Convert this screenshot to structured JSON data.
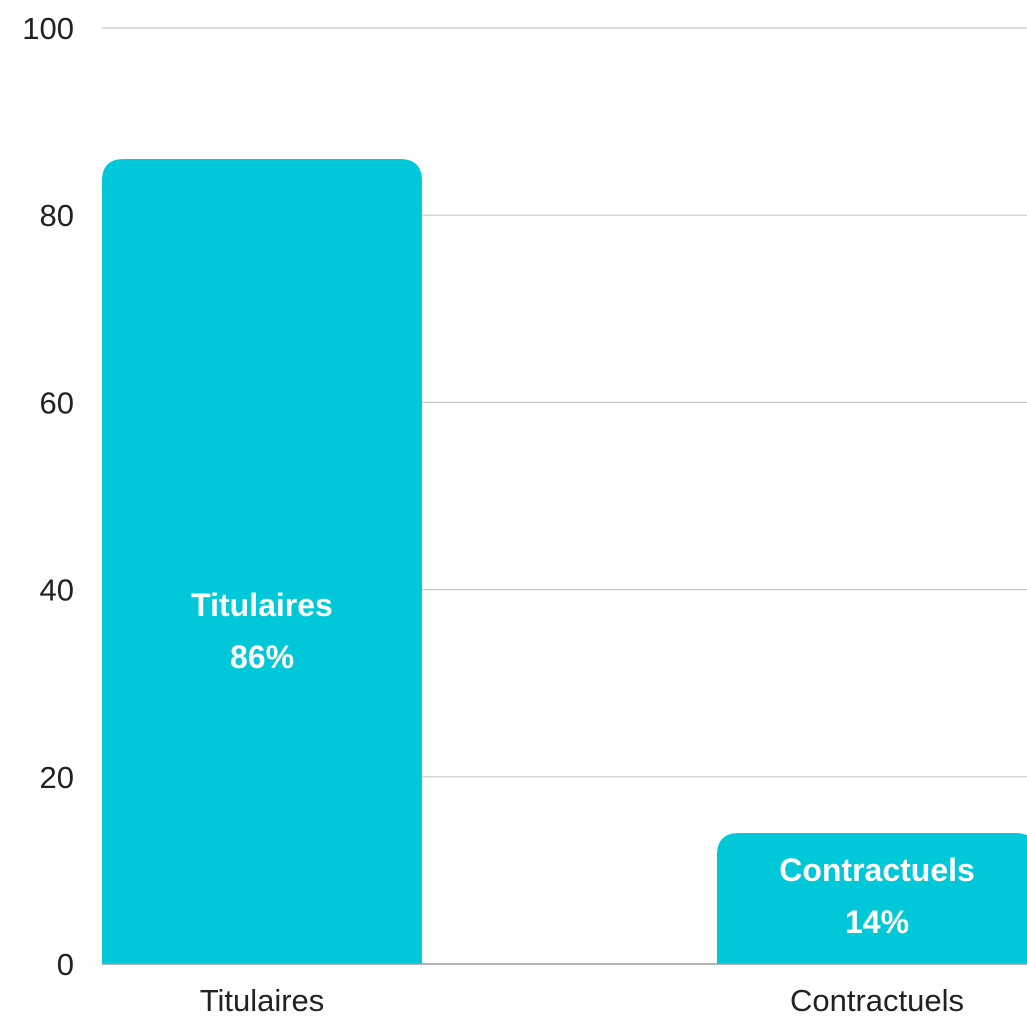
{
  "chart_data": {
    "type": "bar",
    "title": "",
    "xlabel": "",
    "ylabel": "",
    "categories": [
      "Titulaires",
      "Contractuels"
    ],
    "values": [
      86,
      14
    ],
    "bar_labels": [
      {
        "name": "Titulaires",
        "value_text": "86%"
      },
      {
        "name": "Contractuels",
        "value_text": "14%"
      }
    ],
    "ylim": [
      0,
      100
    ],
    "yticks": [
      0,
      20,
      40,
      60,
      80,
      100
    ],
    "grid": true,
    "legend": "none",
    "bar_color": "#00c8d9"
  }
}
